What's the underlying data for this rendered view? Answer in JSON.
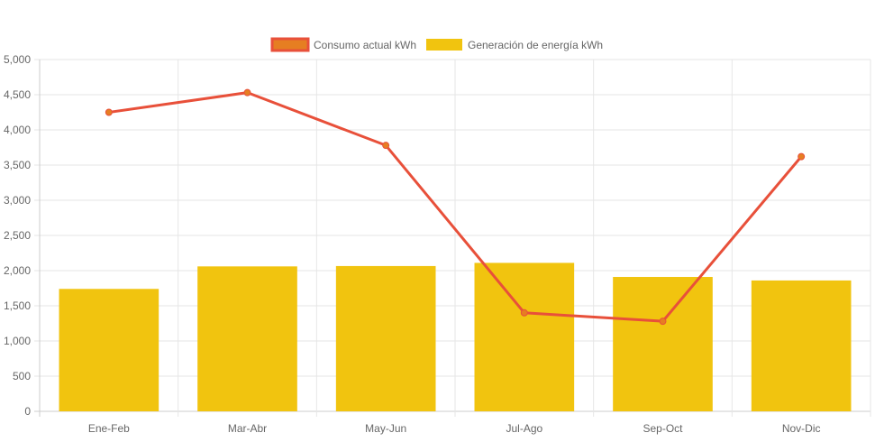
{
  "chart_data": {
    "type": "bar",
    "title": "",
    "xlabel": "",
    "ylabel": "",
    "ylim": [
      0,
      5000
    ],
    "y_ticks": [
      0,
      500,
      1000,
      1500,
      2000,
      2500,
      3000,
      3500,
      4000,
      4500,
      5000
    ],
    "y_tick_labels": [
      "0",
      "500",
      "1,000",
      "1,500",
      "2,000",
      "2,500",
      "3,000",
      "3,500",
      "4,000",
      "4,500",
      "5,000"
    ],
    "categories": [
      "Ene-Feb",
      "Mar-Abr",
      "May-Jun",
      "Jul-Ago",
      "Sep-Oct",
      "Nov-Dic"
    ],
    "grid": true,
    "legend_position": "top-center",
    "series": [
      {
        "name": "Consumo actual kWh",
        "type": "line",
        "color": "#e8503a",
        "point_color": "#e67e22",
        "values": [
          4250,
          4530,
          3780,
          1400,
          1280,
          3620
        ]
      },
      {
        "name": "Generación de energía kWh",
        "type": "bar",
        "color": "#f1c40f",
        "values": [
          1740,
          2060,
          2065,
          2110,
          1910,
          1860
        ]
      }
    ]
  }
}
